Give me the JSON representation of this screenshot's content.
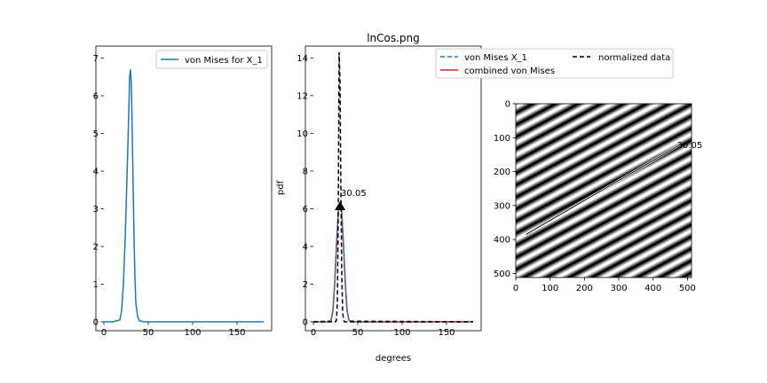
{
  "title": "lnCos.png",
  "colors": {
    "blue": "#1f77b4",
    "red": "#d62728",
    "black": "#000000",
    "green": "#008000"
  },
  "chart_data": [
    {
      "type": "line",
      "xlim": [
        0,
        180
      ],
      "ylim": [
        0,
        7
      ],
      "xticks": [
        "0",
        "50",
        "100",
        "150"
      ],
      "yticks": [
        "0",
        "1",
        "2",
        "3",
        "4",
        "5",
        "6",
        "7"
      ],
      "legend": {
        "placement": "top-right",
        "entries": [
          "von Mises for X_1"
        ]
      },
      "series": [
        {
          "name": "von Mises for X_1",
          "style": "solid",
          "color": "#1f77b4",
          "x": [
            0,
            10,
            18,
            20,
            22,
            24,
            26,
            28,
            29,
            30,
            31,
            32,
            33,
            34,
            35,
            36,
            38,
            40,
            45,
            50,
            100,
            180
          ],
          "y": [
            0,
            0,
            0.05,
            0.3,
            1.0,
            2.2,
            3.8,
            5.5,
            6.5,
            6.7,
            6.3,
            5.0,
            3.6,
            2.2,
            1.2,
            0.5,
            0.15,
            0.03,
            0,
            0,
            0,
            0
          ]
        }
      ]
    },
    {
      "type": "line",
      "title": "lnCos.png",
      "xlabel": "degrees",
      "ylabel": "pdf",
      "xlim": [
        0,
        180
      ],
      "ylim": [
        0,
        15
      ],
      "xticks": [
        "0",
        "50",
        "100",
        "150"
      ],
      "yticks": [
        "0",
        "2",
        "4",
        "6",
        "8",
        "10",
        "12",
        "14"
      ],
      "legend": {
        "placement": "top-right",
        "entries": [
          "von Mises X_1",
          "combined von Mises",
          "normalized data"
        ]
      },
      "annotation": {
        "text": "30.05",
        "x": 30.05,
        "y": 6.3
      },
      "series": [
        {
          "name": "von Mises X_1",
          "style": "dashed",
          "color": "#1f77b4",
          "x": [
            0,
            20,
            22,
            24,
            26,
            28,
            30,
            32,
            34,
            36,
            38,
            40,
            180
          ],
          "y": [
            0,
            0.05,
            0.6,
            2.0,
            4.0,
            5.8,
            6.3,
            5.8,
            4.0,
            2.0,
            0.6,
            0.05,
            0
          ]
        },
        {
          "name": "combined von Mises",
          "style": "solid",
          "color": "#d62728",
          "x": [
            0,
            18,
            20,
            22,
            24,
            26,
            28,
            30,
            32,
            34,
            36,
            38,
            40,
            42,
            180
          ],
          "y": [
            0,
            0,
            0.1,
            0.6,
            2.0,
            4.0,
            5.8,
            6.3,
            5.8,
            4.0,
            2.0,
            0.6,
            0.1,
            0,
            0
          ]
        },
        {
          "name": "normalized data",
          "style": "dashed",
          "color": "#000000",
          "x": [
            0,
            25,
            26,
            27,
            28,
            29,
            30,
            31,
            32,
            33,
            34,
            35,
            36,
            180
          ],
          "y": [
            0,
            0,
            0.1,
            1.0,
            5.5,
            14.3,
            12.8,
            7.0,
            2.5,
            0.5,
            0.1,
            0,
            0,
            0
          ]
        }
      ]
    },
    {
      "type": "heatmap",
      "content": "grayscale diagonal cosine stripe pattern",
      "xlim": [
        0,
        512
      ],
      "ylim": [
        512,
        0
      ],
      "xticks": [
        "0",
        "100",
        "200",
        "300",
        "400",
        "500"
      ],
      "yticks": [
        "0",
        "100",
        "200",
        "300",
        "400",
        "500"
      ],
      "line": {
        "x": [
          30,
          480
        ],
        "y": [
          385,
          120
        ]
      },
      "annotation": {
        "text": "30.05",
        "x": 480,
        "y": 120,
        "color": "#008000"
      }
    }
  ]
}
